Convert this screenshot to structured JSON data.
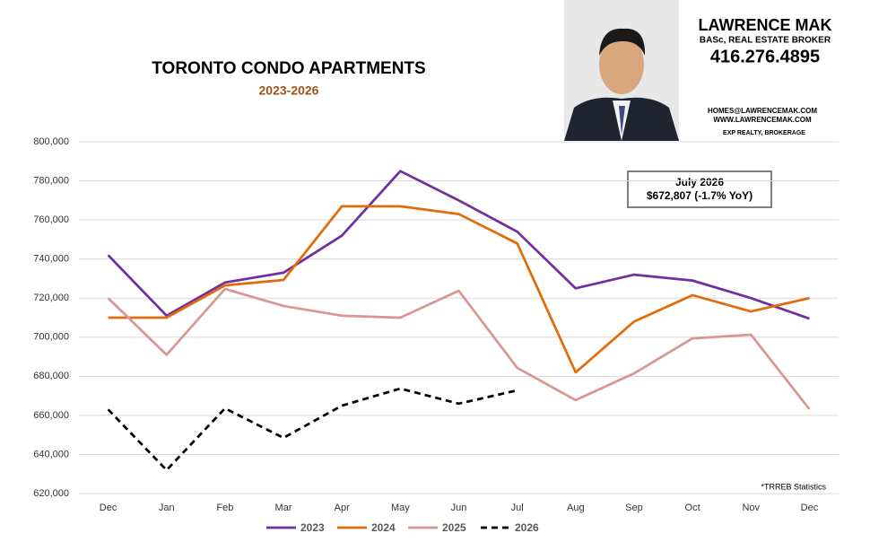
{
  "header": {
    "name": "LAWRENCE MAK",
    "credentials": "BASc, REAL ESTATE BROKER",
    "phone": "416.276.4895",
    "email": "HOMES@LAWRENCEMAK.COM",
    "website": "WWW.LAWRENCEMAK.COM",
    "brokerage": "EXP REALTY, BROKERAGE"
  },
  "chart_data": {
    "type": "line",
    "title": "TORONTO CONDO APARTMENTS",
    "subtitle": "2023-2026",
    "categories": [
      "Dec",
      "Jan",
      "Feb",
      "Mar",
      "Apr",
      "May",
      "Jun",
      "Jul",
      "Aug",
      "Sep",
      "Oct",
      "Nov",
      "Dec"
    ],
    "series": [
      {
        "name": "2023",
        "color": "#7030a0",
        "dash": false,
        "values": [
          742000,
          711000,
          728000,
          733000,
          752000,
          785000,
          770000,
          754000,
          725000,
          732000,
          729000,
          720000,
          709500
        ]
      },
      {
        "name": "2024",
        "color": "#e36c0a",
        "dash": false,
        "values": [
          710000,
          710000,
          726500,
          729300,
          767000,
          767000,
          763000,
          748000,
          682000,
          708000,
          721500,
          713200,
          720000
        ]
      },
      {
        "name": "2025",
        "color": "#d99694",
        "dash": false,
        "values": [
          720000,
          691000,
          724700,
          716000,
          711000,
          710000,
          723800,
          684300,
          667800,
          681500,
          699400,
          701300,
          663200
        ]
      },
      {
        "name": "2026",
        "color": "#000000",
        "dash": true,
        "values": [
          663000,
          632000,
          663600,
          648500,
          665000,
          673700,
          666000,
          672807,
          null,
          null,
          null,
          null,
          null
        ]
      }
    ],
    "ylim": [
      620000,
      800000
    ],
    "yticks": [
      {
        "value": 620000,
        "label": "620,000"
      },
      {
        "value": 640000,
        "label": "640,000"
      },
      {
        "value": 660000,
        "label": "660,000"
      },
      {
        "value": 680000,
        "label": "680,000"
      },
      {
        "value": 700000,
        "label": "700,000"
      },
      {
        "value": 720000,
        "label": "720,000"
      },
      {
        "value": 740000,
        "label": "740,000"
      },
      {
        "value": 760000,
        "label": "760,000"
      },
      {
        "value": 780000,
        "label": "780,000"
      },
      {
        "value": 800000,
        "label": "800,000"
      }
    ],
    "grid": true,
    "legend": "bottom",
    "annotation": {
      "line1": "July 2026",
      "line2": "$672,807 (-1.7% YoY)"
    },
    "footnote": "*TRREB Statistics"
  }
}
